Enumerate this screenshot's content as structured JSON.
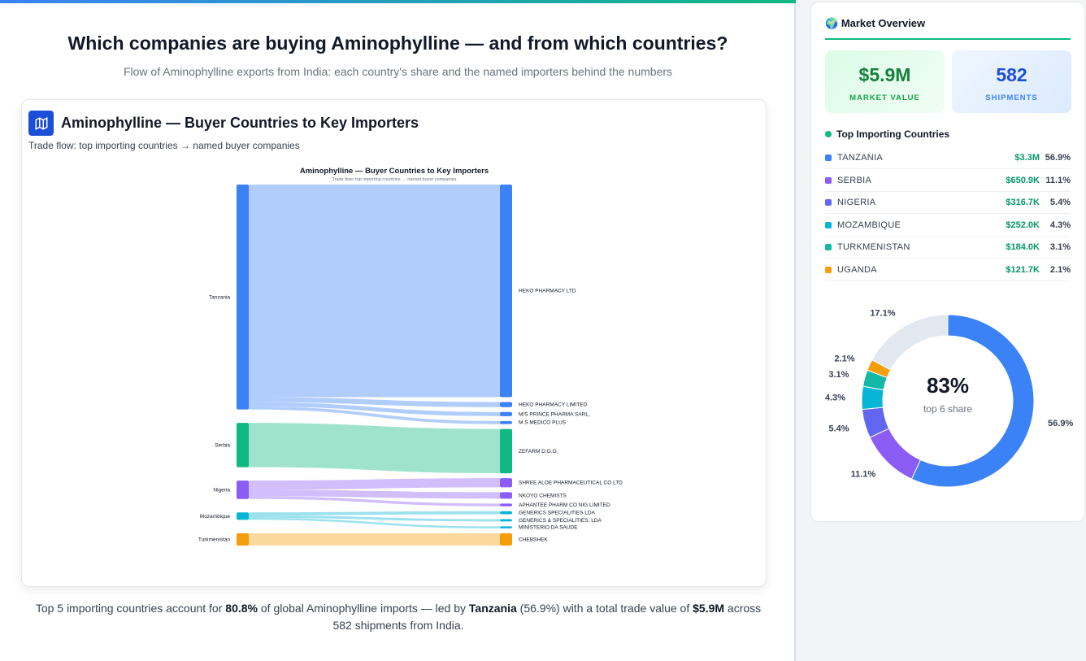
{
  "header": {
    "title": "Which companies are buying Aminophylline — and from which countries?",
    "subtitle": "Flow of Aminophylline exports from India: each country's share and the named importers behind the numbers"
  },
  "card": {
    "icon": "map-icon",
    "title": "Aminophylline — Buyer Countries to Key Importers",
    "subtitle": "Trade flow: top importing countries → named buyer companies"
  },
  "chart_data": {
    "type": "sankey",
    "title": "Aminophylline — Buyer Countries to Key Importers",
    "subtitle": "Trade flow: top importing countries → named buyer companies",
    "sources": [
      {
        "name": "Tanzania",
        "color": "#3b82f6"
      },
      {
        "name": "Serbia",
        "color": "#10b981"
      },
      {
        "name": "Nigeria",
        "color": "#8b5cf6"
      },
      {
        "name": "Mozambique",
        "color": "#06b6d4"
      },
      {
        "name": "Turkmenistan",
        "color": "#f59e0b"
      }
    ],
    "links": [
      {
        "source": "Tanzania",
        "target": "HEKO PHARMACY LTD",
        "value": 3120
      },
      {
        "source": "Tanzania",
        "target": "HEKO PHARMACY LIMITED",
        "value": 75
      },
      {
        "source": "Tanzania",
        "target": "M/S PRINCE PHARMA SARL,",
        "value": 60
      },
      {
        "source": "Tanzania",
        "target": "M S MEDICO PLUS",
        "value": 45
      },
      {
        "source": "Serbia",
        "target": "ZEFARM D.O.O,",
        "value": 650
      },
      {
        "source": "Nigeria",
        "target": "SHREE ALOE PHARMACEUTICAL CO LTD",
        "value": 135
      },
      {
        "source": "Nigeria",
        "target": "NKOYO CHEMISTS",
        "value": 95
      },
      {
        "source": "Nigeria",
        "target": "APHANTEE PHARM CO NIG LIMITED",
        "value": 40
      },
      {
        "source": "Mozambique",
        "target": "GENERICS SPECIALITIES LDA",
        "value": 45
      },
      {
        "source": "Mozambique",
        "target": "GENERICS & SPECIALITIES, LDA",
        "value": 35
      },
      {
        "source": "Mozambique",
        "target": "MINISTERIO DA SAUDE",
        "value": 30
      },
      {
        "source": "Turkmenistan",
        "target": "CHEBSHEK",
        "value": 180
      }
    ]
  },
  "footer": {
    "pre": "Top 5 importing countries account for ",
    "pct": "80.8%",
    "mid": " of global Aminophylline imports — led by ",
    "country": "Tanzania",
    "share": " (56.9%) with a total trade value of ",
    "value": "$5.9M",
    "post": " across 582 shipments from India."
  },
  "sidebar": {
    "title": "Market Overview",
    "icon": "globe-icon",
    "market_value": "$5.9M",
    "market_value_label": "MARKET VALUE",
    "shipments": "582",
    "shipments_label": "SHIPMENTS",
    "section": "Top Importing Countries",
    "countries": [
      {
        "name": "TANZANIA",
        "value": "$3.3M",
        "pct": "56.9%",
        "share": 56.9,
        "color": "#3b82f6"
      },
      {
        "name": "SERBIA",
        "value": "$650.9K",
        "pct": "11.1%",
        "share": 11.1,
        "color": "#8b5cf6"
      },
      {
        "name": "NIGERIA",
        "value": "$316.7K",
        "pct": "5.4%",
        "share": 5.4,
        "color": "#6366f1"
      },
      {
        "name": "MOZAMBIQUE",
        "value": "$252.0K",
        "pct": "4.3%",
        "share": 4.3,
        "color": "#06b6d4"
      },
      {
        "name": "TURKMENISTAN",
        "value": "$184.0K",
        "pct": "3.1%",
        "share": 3.1,
        "color": "#14b8a6"
      },
      {
        "name": "UGANDA",
        "value": "$121.7K",
        "pct": "2.1%",
        "share": 2.1,
        "color": "#f59e0b"
      }
    ],
    "other": {
      "pct": "17.1%",
      "share": 17.1,
      "color": "#e2e8f0"
    },
    "donut_center": "83%",
    "donut_center_label": "top 6 share"
  }
}
